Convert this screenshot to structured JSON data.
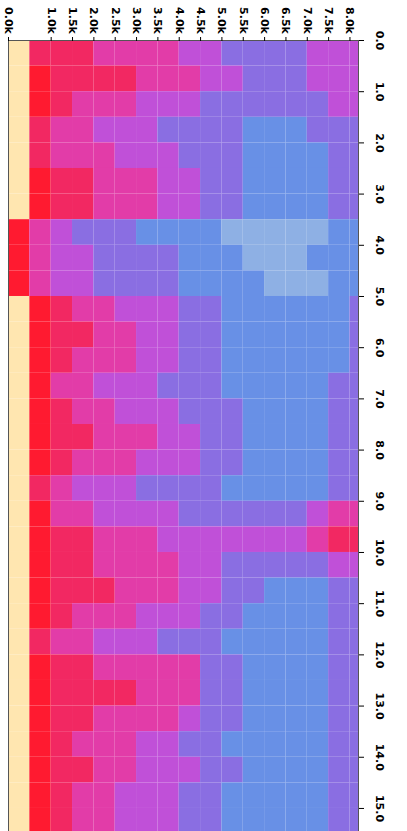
{
  "chart_data": {
    "type": "heatmap",
    "x_bins": [
      0,
      0.5,
      1,
      1.5,
      2,
      2.5,
      3,
      3.5,
      4,
      4.5,
      5,
      5.5,
      6,
      6.5,
      7,
      7.5,
      8,
      8.5
    ],
    "y_bins": [
      0,
      0.5,
      1,
      1.5,
      2,
      2.5,
      3,
      3.5,
      4,
      4.5,
      5,
      5.5,
      6,
      6.5,
      7,
      7.5,
      8,
      8.5,
      9,
      9.5,
      10,
      10.5,
      11,
      11.5,
      12,
      12.5,
      13,
      13.5,
      14,
      14.5,
      15,
      15.5
    ],
    "values": [
      [
        9,
        7,
        7,
        7,
        6,
        6,
        6,
        6,
        5,
        5,
        4,
        4,
        4,
        4,
        5,
        5,
        5
      ],
      [
        9,
        8,
        7,
        7,
        7,
        7,
        6,
        6,
        6,
        5,
        5,
        4,
        4,
        4,
        5,
        5,
        5
      ],
      [
        9,
        8,
        7,
        6,
        6,
        6,
        5,
        5,
        5,
        4,
        4,
        4,
        4,
        4,
        4,
        5,
        5
      ],
      [
        9,
        7,
        6,
        6,
        5,
        5,
        5,
        4,
        4,
        4,
        4,
        3,
        3,
        3,
        4,
        4,
        4
      ],
      [
        9,
        7,
        6,
        6,
        6,
        5,
        5,
        5,
        4,
        4,
        4,
        3,
        3,
        3,
        3,
        4,
        4
      ],
      [
        9,
        8,
        7,
        7,
        6,
        6,
        6,
        5,
        5,
        4,
        4,
        3,
        3,
        3,
        3,
        4,
        4
      ],
      [
        9,
        8,
        7,
        7,
        6,
        6,
        6,
        5,
        5,
        4,
        4,
        3,
        3,
        3,
        3,
        4,
        4
      ],
      [
        8,
        6,
        5,
        4,
        4,
        4,
        3,
        3,
        3,
        3,
        2,
        2,
        2,
        2,
        2,
        3,
        3
      ],
      [
        8,
        6,
        5,
        5,
        4,
        4,
        4,
        4,
        3,
        3,
        3,
        2,
        2,
        2,
        3,
        3,
        3
      ],
      [
        8,
        6,
        5,
        5,
        4,
        4,
        4,
        4,
        3,
        3,
        3,
        3,
        2,
        2,
        2,
        3,
        3
      ],
      [
        9,
        8,
        7,
        6,
        6,
        5,
        5,
        5,
        4,
        4,
        3,
        3,
        3,
        3,
        3,
        3,
        4
      ],
      [
        9,
        8,
        7,
        7,
        6,
        6,
        5,
        5,
        4,
        4,
        3,
        3,
        3,
        3,
        3,
        3,
        4
      ],
      [
        9,
        8,
        7,
        6,
        6,
        6,
        5,
        5,
        4,
        4,
        3,
        3,
        3,
        3,
        3,
        3,
        4
      ],
      [
        9,
        8,
        6,
        6,
        5,
        5,
        5,
        4,
        4,
        4,
        3,
        3,
        3,
        3,
        3,
        4,
        4
      ],
      [
        9,
        8,
        7,
        6,
        6,
        5,
        5,
        5,
        4,
        4,
        4,
        3,
        3,
        3,
        3,
        4,
        4
      ],
      [
        9,
        8,
        7,
        7,
        6,
        6,
        6,
        5,
        5,
        4,
        4,
        3,
        3,
        3,
        3,
        4,
        4
      ],
      [
        9,
        8,
        7,
        6,
        6,
        6,
        5,
        5,
        5,
        4,
        4,
        3,
        3,
        3,
        3,
        4,
        4
      ],
      [
        9,
        7,
        6,
        5,
        5,
        5,
        4,
        4,
        4,
        4,
        3,
        3,
        3,
        3,
        3,
        4,
        4
      ],
      [
        9,
        8,
        6,
        6,
        5,
        5,
        5,
        5,
        4,
        4,
        4,
        4,
        4,
        4,
        5,
        6,
        6
      ],
      [
        9,
        8,
        7,
        7,
        6,
        6,
        6,
        5,
        5,
        5,
        5,
        5,
        5,
        5,
        6,
        7,
        7
      ],
      [
        9,
        8,
        7,
        7,
        6,
        6,
        6,
        6,
        5,
        5,
        4,
        4,
        4,
        4,
        4,
        5,
        5
      ],
      [
        9,
        8,
        7,
        7,
        7,
        6,
        6,
        6,
        5,
        5,
        4,
        4,
        3,
        3,
        3,
        4,
        4
      ],
      [
        9,
        8,
        7,
        6,
        6,
        6,
        5,
        5,
        5,
        4,
        4,
        3,
        3,
        3,
        3,
        4,
        4
      ],
      [
        9,
        7,
        6,
        6,
        5,
        5,
        5,
        4,
        4,
        4,
        3,
        3,
        3,
        3,
        3,
        4,
        4
      ],
      [
        9,
        8,
        7,
        7,
        6,
        6,
        6,
        6,
        6,
        4,
        4,
        3,
        3,
        3,
        3,
        4,
        4
      ],
      [
        9,
        8,
        7,
        7,
        7,
        7,
        6,
        6,
        6,
        4,
        4,
        3,
        3,
        3,
        3,
        4,
        4
      ],
      [
        9,
        8,
        7,
        7,
        6,
        6,
        6,
        6,
        5,
        4,
        4,
        3,
        3,
        3,
        3,
        4,
        4
      ],
      [
        9,
        8,
        7,
        6,
        6,
        6,
        5,
        5,
        4,
        4,
        3,
        3,
        3,
        3,
        3,
        4,
        4
      ],
      [
        9,
        8,
        7,
        7,
        6,
        6,
        5,
        5,
        5,
        4,
        4,
        3,
        3,
        3,
        3,
        4,
        4
      ],
      [
        9,
        8,
        7,
        6,
        6,
        5,
        5,
        5,
        4,
        4,
        3,
        3,
        3,
        3,
        3,
        4,
        4
      ],
      [
        9,
        8,
        7,
        6,
        6,
        5,
        5,
        5,
        4,
        4,
        3,
        3,
        3,
        3,
        3,
        4,
        4
      ]
    ],
    "zlim": [
      0,
      9
    ],
    "xlim": [
      0,
      8.2
    ],
    "xticks": [
      {
        "value": 0,
        "label": "0.0k"
      },
      {
        "value": 1,
        "label": "1.0k"
      },
      {
        "value": 1.5,
        "label": "1.5k"
      },
      {
        "value": 2,
        "label": "2.0k"
      },
      {
        "value": 2.5,
        "label": "2.5k"
      },
      {
        "value": 3,
        "label": "3.0k"
      },
      {
        "value": 3.5,
        "label": "3.5k"
      },
      {
        "value": 4,
        "label": "4.0k"
      },
      {
        "value": 4.5,
        "label": "4.5k"
      },
      {
        "value": 5,
        "label": "5.0k"
      },
      {
        "value": 5.5,
        "label": "5.5k"
      },
      {
        "value": 6,
        "label": "6.0k"
      },
      {
        "value": 6.5,
        "label": "6.5k"
      },
      {
        "value": 7,
        "label": "7.0k"
      },
      {
        "value": 7.5,
        "label": "7.5k"
      },
      {
        "value": 8,
        "label": "8.0k"
      }
    ],
    "ylim": [
      0,
      15.45
    ],
    "yticks": [
      {
        "value": 0,
        "label": "0.0"
      },
      {
        "value": 1,
        "label": "1.0"
      },
      {
        "value": 2,
        "label": "2.0"
      },
      {
        "value": 3,
        "label": "3.0"
      },
      {
        "value": 4,
        "label": "4.0"
      },
      {
        "value": 5,
        "label": "5.0"
      },
      {
        "value": 6,
        "label": "6.0"
      },
      {
        "value": 7,
        "label": "7.0"
      },
      {
        "value": 8,
        "label": "8.0"
      },
      {
        "value": 9,
        "label": "9.0"
      },
      {
        "value": 10,
        "label": "10.0"
      },
      {
        "value": 11,
        "label": "11.0"
      },
      {
        "value": 12,
        "label": "12.0"
      },
      {
        "value": 13,
        "label": "13.0"
      },
      {
        "value": 14,
        "label": "14.0"
      },
      {
        "value": 15,
        "label": "15.0"
      }
    ]
  }
}
